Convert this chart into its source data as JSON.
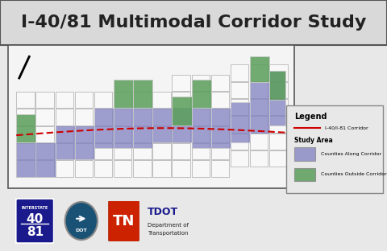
{
  "title": "I-40/81 Multimodal Corridor Study",
  "title_fontsize": 16,
  "title_bg_color": "#d9d9d9",
  "map_bg_color": "#ffffff",
  "outer_bg_color": "#ffffff",
  "body_bg_color": "#e8e8e8",
  "county_along_color": "#8080c0",
  "county_outside_color": "#5a9e5a",
  "corridor_color": "#cc0000",
  "county_border_color": "#ffffff",
  "county_along_alpha": 0.75,
  "county_outside_alpha": 0.85,
  "legend_title": "Legend",
  "legend_corridor_label": "I-40/I-81 Corridor",
  "legend_study_area": "Study Area",
  "legend_along_label": "Counties Along Corridor",
  "legend_outside_label": "Counties Outside Corridor",
  "figsize": [
    4.8,
    3.12
  ],
  "dpi": 100,
  "tn_outline_color": "#555555"
}
